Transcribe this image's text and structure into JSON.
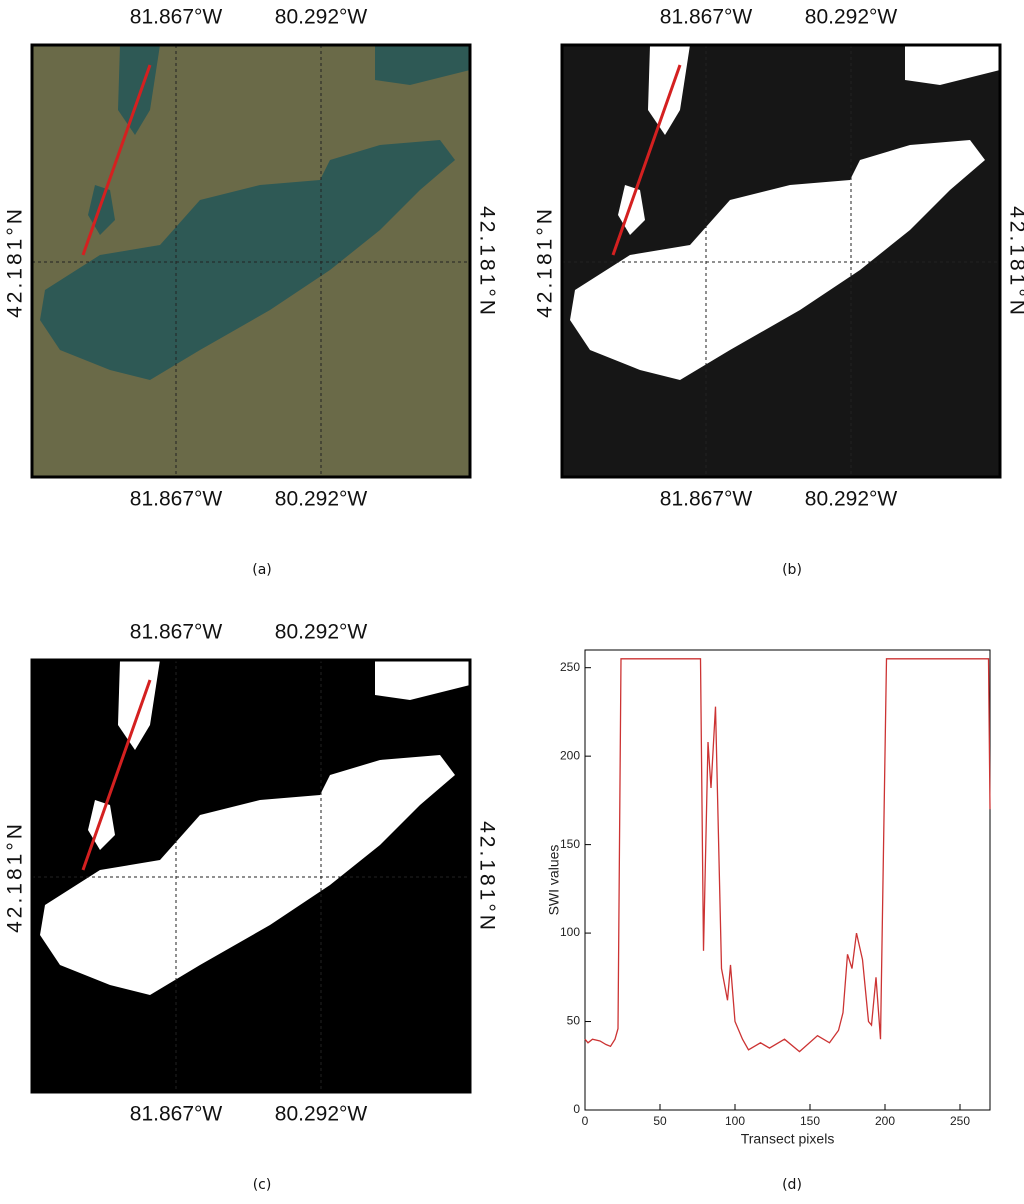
{
  "maps": [
    {
      "caption": "(a)",
      "lon_labels": [
        "81.867°W",
        "80.292°W"
      ],
      "lat_label": "42.181°N"
    },
    {
      "caption": "(b)",
      "lon_labels": [
        "81.867°W",
        "80.292°W"
      ],
      "lat_label": "42.181°N"
    },
    {
      "caption": "(c)",
      "lon_labels": [
        "81.867°W",
        "80.292°W"
      ],
      "lat_label": "42.181°N"
    }
  ],
  "chart_data": {
    "type": "line",
    "caption": "(d)",
    "xlabel": "Transect pixels",
    "ylabel": "SWI values",
    "x": [
      0,
      2,
      5,
      10,
      14,
      17,
      20,
      22,
      24,
      77,
      79,
      82,
      84,
      87,
      91,
      95,
      97,
      100,
      105,
      109,
      117,
      123,
      133,
      143,
      155,
      163,
      169,
      172,
      175,
      178,
      181,
      185,
      189,
      191,
      194,
      197,
      201,
      269,
      270
    ],
    "values": [
      40,
      38,
      40,
      39,
      37,
      36,
      40,
      46,
      255,
      255,
      90,
      208,
      182,
      228,
      80,
      62,
      82,
      50,
      40,
      34,
      38,
      35,
      40,
      33,
      42,
      38,
      45,
      55,
      88,
      80,
      100,
      85,
      50,
      48,
      75,
      40,
      255,
      255,
      170
    ],
    "color": "#cc3333",
    "xlim": [
      0,
      270
    ],
    "ylim": [
      0,
      260
    ],
    "xticks": [
      0,
      50,
      100,
      150,
      200,
      250
    ],
    "yticks": [
      0,
      50,
      100,
      150,
      200,
      250
    ]
  }
}
